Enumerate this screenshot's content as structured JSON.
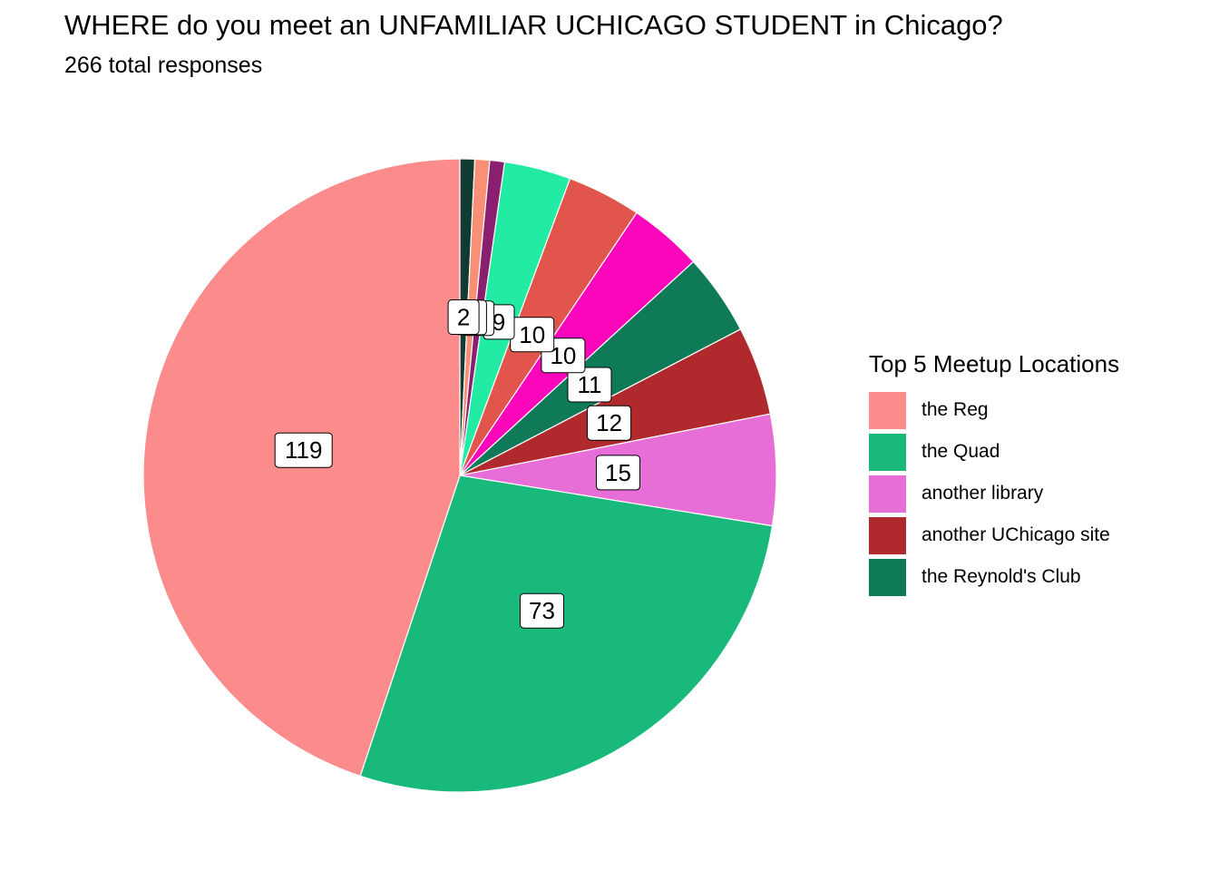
{
  "chart_data": {
    "type": "pie",
    "title": "WHERE do you meet an UNFAMILIAR UCHICAGO STUDENT in Chicago?",
    "subtitle": "266 total responses",
    "slices": [
      {
        "value": 2,
        "color": "#0f3b31",
        "label": "2"
      },
      {
        "value": 2,
        "color": "#f89078",
        "label": ""
      },
      {
        "value": 2,
        "color": "#8a1f6f",
        "label": ""
      },
      {
        "value": 9,
        "color": "#22eba4",
        "label": "9"
      },
      {
        "value": 10,
        "color": "#e2554c",
        "label": "10"
      },
      {
        "value": 10,
        "color": "#fb06bb",
        "label": "10"
      },
      {
        "value": 11,
        "color": "#0f7a57",
        "label": "11"
      },
      {
        "value": 12,
        "color": "#b02a2d",
        "label": "12"
      },
      {
        "value": 15,
        "color": "#e66ed6",
        "label": "15"
      },
      {
        "value": 73,
        "color": "#19b97c",
        "label": "73"
      },
      {
        "value": 119,
        "color": "#fc8b8b",
        "label": "119"
      }
    ],
    "legend": {
      "title": "Top 5 Meetup Locations",
      "position": "right",
      "items": [
        {
          "label": "the Reg",
          "color": "#fc8b8b"
        },
        {
          "label": "the Quad",
          "color": "#19b97c"
        },
        {
          "label": "another library",
          "color": "#e66ed6"
        },
        {
          "label": "another UChicago site",
          "color": "#b02a2d"
        },
        {
          "label": "the Reynold's Club",
          "color": "#0f7a57"
        }
      ]
    }
  }
}
